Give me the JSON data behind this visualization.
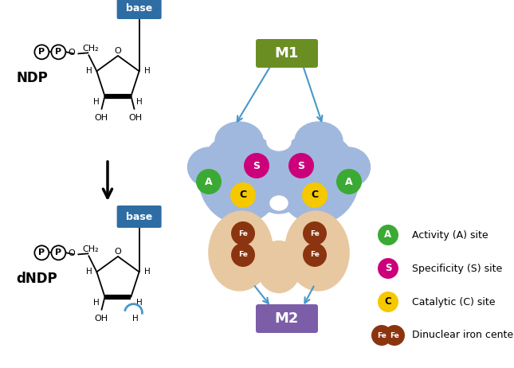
{
  "bg_color": "#ffffff",
  "ndp_label": "NDP",
  "dndp_label": "dNDP",
  "base_box_color": "#2E6DA4",
  "base_text_color": "#ffffff",
  "m1_box_color": "#6B8E23",
  "m1_text_color": "#ffffff",
  "m2_box_color": "#7B5EA7",
  "m2_text_color": "#ffffff",
  "m1_label": "M1",
  "m2_label": "M2",
  "base_label": "base",
  "activity_color": "#3BAA35",
  "specificity_color": "#CC007A",
  "catalytic_color": "#F5C800",
  "fe_color": "#8B3510",
  "rrm1_blob_color": "#A0B8DD",
  "rrm2_blob_color": "#E8C8A0",
  "arrow_color": "#4898C8",
  "legend_texts": [
    "Activity (A) site",
    "Specificity (S) site",
    "Catalytic (C) site",
    "Dinuclear iron center"
  ],
  "fig_w": 6.45,
  "fig_h": 4.62,
  "dpi": 100
}
